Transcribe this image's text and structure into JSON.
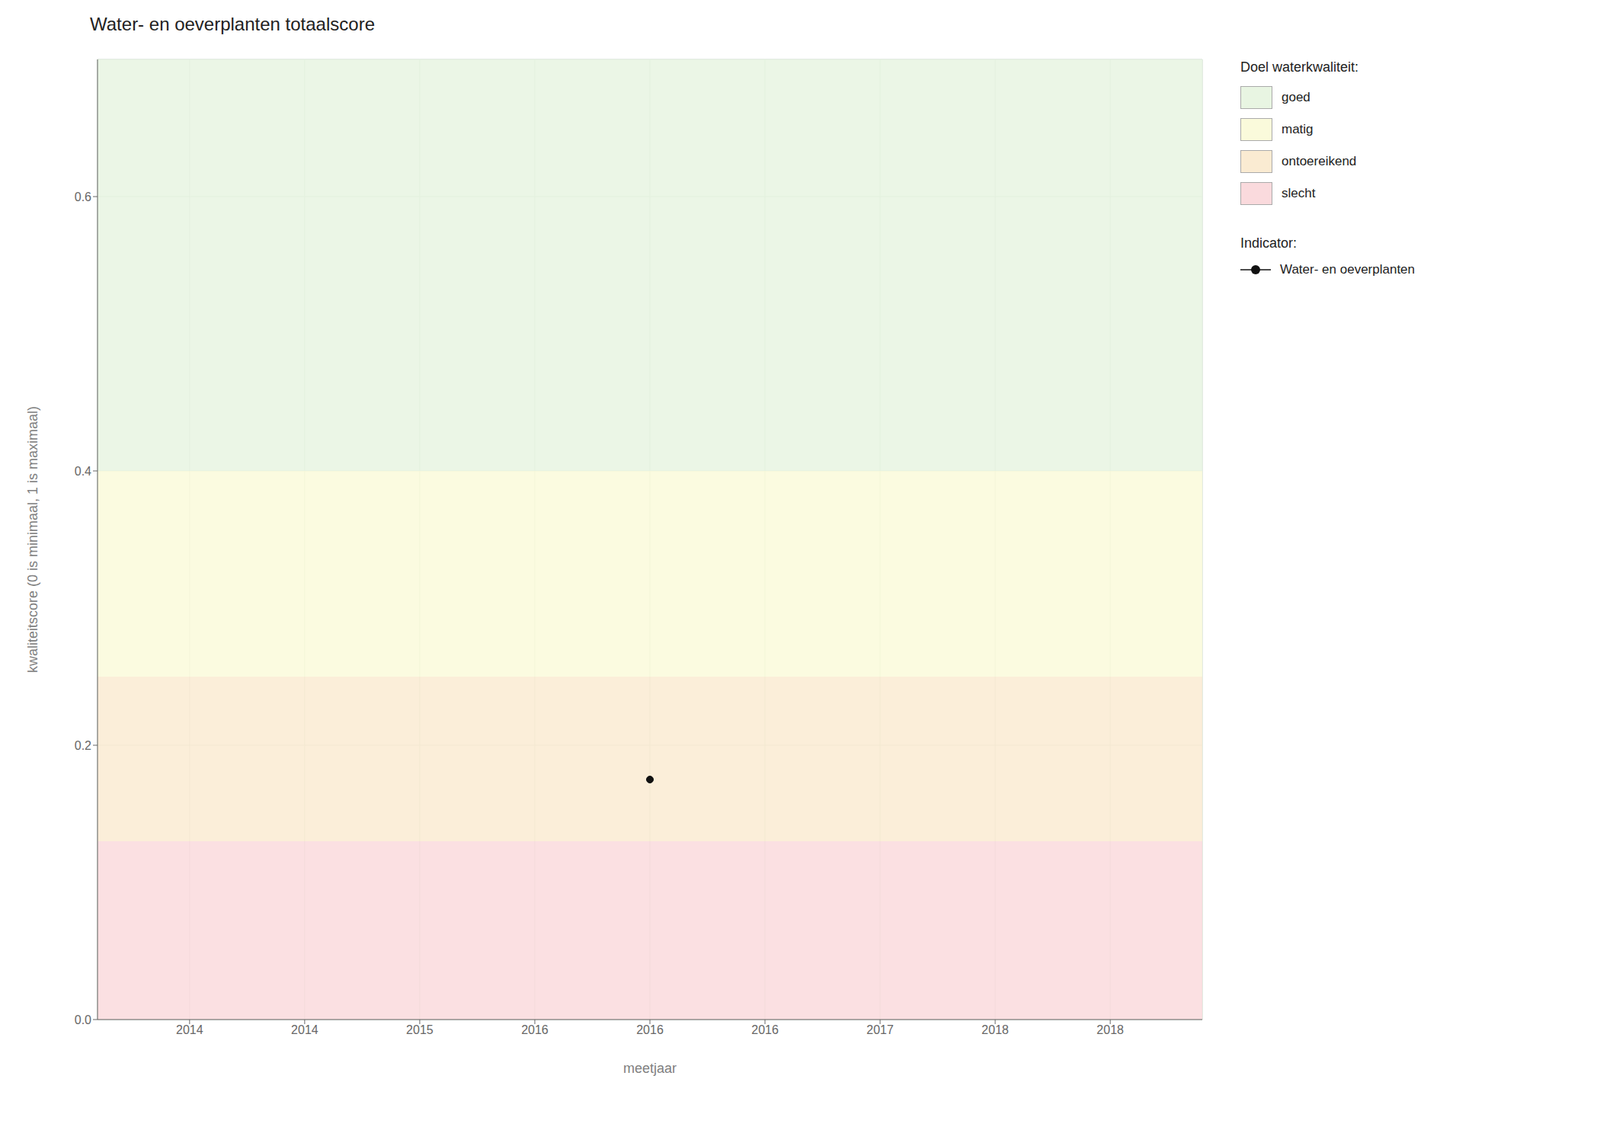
{
  "chart_data": {
    "type": "scatter",
    "title": "Water- en oeverplanten totaalscore",
    "x_label": "meetjaar",
    "y_label": "kwaliteitscore (0 is minimaal, 1 is maximaal)",
    "xlim": [
      2013.6,
      2018.4
    ],
    "ylim": [
      0.0,
      0.7
    ],
    "xticks": [
      2014,
      {
        "value": 2014.5,
        "label": "2014"
      },
      2015,
      {
        "value": 2015.5,
        "label": "2016"
      },
      2016,
      {
        "value": 2016.5,
        "label": "2016"
      },
      2017,
      {
        "value": 2017.5,
        "label": "2018"
      },
      2018
    ],
    "yticks": [
      {
        "value": 0,
        "label": "0.0"
      },
      0.2,
      0.4,
      0.6
    ],
    "grid": true,
    "legend": "right",
    "legend_title": "Doel waterkwaliteit:",
    "bands": [
      {
        "name": "goed",
        "color": "#e8f5e2",
        "from": 0.4,
        "to": 0.7
      },
      {
        "name": "matig",
        "color": "#fafadb",
        "from": 0.25,
        "to": 0.4
      },
      {
        "name": "ontoereikend",
        "color": "#faebd2",
        "from": 0.13,
        "to": 0.25
      },
      {
        "name": "slecht",
        "color": "#fadadd",
        "from": 0.0,
        "to": 0.13
      }
    ],
    "series_legend_title": "Indicator:",
    "series": [
      {
        "name": "Water- en oeverplanten",
        "color": "#111111",
        "marker": "circle",
        "line_style": "solid",
        "x": [
          2016
        ],
        "values": [
          0.175
        ]
      }
    ]
  }
}
